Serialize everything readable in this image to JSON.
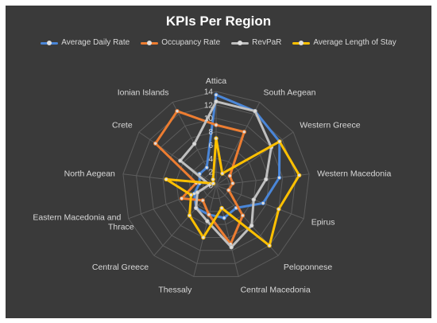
{
  "chart_data": {
    "type": "radar",
    "title": "KPIs Per Region",
    "categories": [
      "Attica",
      "South Aegean",
      "Western Greece",
      "Western Macedonia",
      "Epirus",
      "Peloponnese",
      "Central Macedonia",
      "Thessaly",
      "Central Greece",
      "Eastern Macedonia and Thrace",
      "North Aegean",
      "Crete",
      "Ionian Islands"
    ],
    "axis": {
      "min": 0,
      "max": 14,
      "ticks": [
        "0",
        "2",
        "4",
        "6",
        "8",
        "10",
        "12",
        "14"
      ]
    },
    "grid": true,
    "legend_position": "top",
    "series": [
      {
        "name": "Average Daily Rate",
        "color": "#4a86d8",
        "values": [
          13.5,
          12.5,
          11.5,
          9.5,
          7.5,
          4.5,
          5,
          4.5,
          4.5,
          3.5,
          2.5,
          3,
          3
        ]
      },
      {
        "name": "Occupancy Rate",
        "color": "#ed7d31",
        "values": [
          9,
          9,
          2.5,
          2.5,
          2,
          6,
          9,
          4.5,
          3,
          5.5,
          3,
          11,
          12.5
        ]
      },
      {
        "name": "RevPaR",
        "color": "#bfbfbf",
        "values": [
          12.5,
          12.5,
          10,
          7.5,
          6,
          8,
          9.5,
          5.5,
          4.5,
          3,
          1,
          6.5,
          7
        ]
      },
      {
        "name": "Average Length of Stay",
        "color": "#ffc000",
        "values": [
          7,
          2,
          11.5,
          12.5,
          10,
          12,
          3.5,
          8,
          6,
          4,
          7.5,
          0.5,
          1
        ]
      }
    ]
  }
}
